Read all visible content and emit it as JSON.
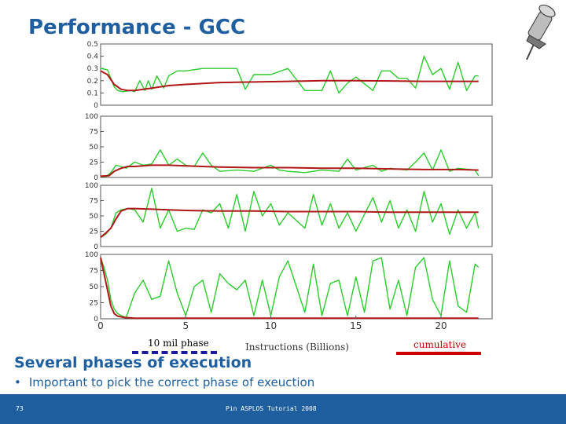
{
  "slide": {
    "title": "Performance - GCC",
    "bullet_heading": "Several phases of execution",
    "bullet_text": "Important to pick the correct phase of exeuction",
    "footer_text": "Pin ASPLOS Tutorial 2008",
    "page_number": "73",
    "pin_icon": "pushpin-icon"
  },
  "legend": {
    "phase_label": "10 mil phase",
    "cumulative_label": "cumulative",
    "phase_color": "#2ccc2c",
    "cumulative_color": "#b01818"
  },
  "colors": {
    "title": "#1f5fa0",
    "footer_bg": "#1f5fa0",
    "phase_series": "#2ccc2c",
    "cumulative_series": "#b01818"
  },
  "chart_data": {
    "type": "line",
    "xlabel": "Instructions (Billions)",
    "xlim": [
      0,
      23
    ],
    "x_ticks": [
      0,
      5,
      10,
      15,
      20
    ],
    "grid": false,
    "panels": [
      {
        "ylim": [
          0,
          0.5
        ],
        "y_ticks": [
          "0",
          "0.1",
          "0.2",
          "0.3",
          "0.4",
          "0.5"
        ],
        "y_max": 0.5,
        "series": [
          {
            "role": "phase",
            "x": [
              0,
              0.4,
              0.6,
              0.8,
              1,
              1.3,
              1.8,
              2,
              2.3,
              2.6,
              2.8,
              3,
              3.3,
              3.7,
              4,
              4.5,
              5,
              6,
              7,
              8,
              8.5,
              9,
              10,
              11,
              12,
              13,
              13.5,
              14,
              14.5,
              15,
              16,
              16.5,
              17,
              17.5,
              18,
              18.5,
              19,
              19.5,
              20,
              20.5,
              21,
              21.5,
              22,
              22.2
            ],
            "y": [
              0.3,
              0.29,
              0.22,
              0.15,
              0.12,
              0.11,
              0.12,
              0.11,
              0.2,
              0.12,
              0.2,
              0.13,
              0.24,
              0.14,
              0.24,
              0.28,
              0.28,
              0.3,
              0.3,
              0.3,
              0.13,
              0.25,
              0.25,
              0.3,
              0.12,
              0.12,
              0.28,
              0.1,
              0.18,
              0.23,
              0.12,
              0.28,
              0.28,
              0.22,
              0.22,
              0.14,
              0.4,
              0.25,
              0.3,
              0.13,
              0.35,
              0.12,
              0.24,
              0.24
            ]
          },
          {
            "role": "cumulative",
            "x": [
              0,
              0.4,
              0.8,
              1.2,
              1.6,
              2,
              3,
              4,
              5,
              7,
              9,
              11,
              13,
              15,
              17,
              19,
              21,
              22.2
            ],
            "y": [
              0.28,
              0.25,
              0.17,
              0.13,
              0.12,
              0.12,
              0.14,
              0.16,
              0.17,
              0.185,
              0.19,
              0.195,
              0.2,
              0.2,
              0.198,
              0.195,
              0.195,
              0.195
            ]
          }
        ]
      },
      {
        "ylim": [
          0,
          100
        ],
        "y_ticks": [
          "0",
          "25",
          "50",
          "75",
          "100"
        ],
        "y_max": 100,
        "series": [
          {
            "role": "phase",
            "x": [
              0,
              0.3,
              0.6,
              0.9,
              1.2,
              1.5,
              2,
              2.5,
              3,
              3.5,
              4,
              4.5,
              5,
              5.5,
              6,
              6.5,
              7,
              8,
              9,
              10,
              10.5,
              11,
              12,
              13,
              14,
              14.5,
              15,
              16,
              16.5,
              17,
              18,
              18.5,
              19,
              19.5,
              20,
              20.5,
              21,
              22,
              22.2
            ],
            "y": [
              2,
              1,
              8,
              20,
              18,
              15,
              25,
              20,
              22,
              45,
              20,
              30,
              20,
              18,
              40,
              20,
              10,
              12,
              10,
              20,
              12,
              10,
              8,
              12,
              10,
              30,
              12,
              20,
              10,
              15,
              12,
              25,
              40,
              12,
              45,
              10,
              15,
              12,
              3
            ]
          },
          {
            "role": "cumulative",
            "x": [
              0,
              0.5,
              0.8,
              1.2,
              1.6,
              2,
              3,
              4,
              5,
              7,
              9,
              11,
              13,
              15,
              17,
              19,
              21,
              22.2
            ],
            "y": [
              2,
              3,
              10,
              15,
              18,
              18,
              20,
              20,
              19,
              17,
              16,
              16,
              15,
              15,
              14,
              13,
              13,
              12
            ]
          }
        ]
      },
      {
        "ylim": [
          0,
          100
        ],
        "y_ticks": [
          "0",
          "25",
          "50",
          "75",
          "100"
        ],
        "y_max": 100,
        "series": [
          {
            "role": "phase",
            "x": [
              0,
              0.3,
              0.6,
              0.9,
              1.2,
              1.6,
              2,
              2.5,
              3,
              3.5,
              4,
              4.5,
              5,
              5.5,
              6,
              6.5,
              7,
              7.5,
              8,
              8.5,
              9,
              9.5,
              10,
              10.5,
              11,
              12,
              12.5,
              13,
              13.5,
              14,
              14.5,
              15,
              16,
              16.5,
              17,
              17.5,
              18,
              18.5,
              19,
              19.5,
              20,
              20.5,
              21,
              21.5,
              22,
              22.2
            ],
            "y": [
              15,
              20,
              30,
              55,
              60,
              62,
              60,
              40,
              95,
              30,
              60,
              25,
              30,
              28,
              60,
              55,
              70,
              30,
              85,
              25,
              90,
              50,
              70,
              35,
              55,
              30,
              85,
              35,
              70,
              30,
              55,
              25,
              80,
              40,
              75,
              30,
              60,
              25,
              90,
              40,
              70,
              20,
              60,
              30,
              55,
              30
            ]
          },
          {
            "role": "cumulative",
            "x": [
              0,
              0.3,
              0.6,
              0.9,
              1.2,
              1.6,
              2,
              3,
              4,
              5,
              7,
              9,
              11,
              13,
              15,
              17,
              19,
              21,
              22.2
            ],
            "y": [
              15,
              22,
              30,
              45,
              58,
              62,
              62,
              61,
              60,
              59,
              58,
              58,
              57,
              57,
              57,
              56,
              56,
              56,
              56
            ]
          }
        ]
      },
      {
        "ylim": [
          0,
          100
        ],
        "y_ticks": [
          "0",
          "25",
          "50",
          "75",
          "100"
        ],
        "y_max": 100,
        "series": [
          {
            "role": "phase",
            "x": [
              0,
              0.2,
              0.4,
              0.6,
              0.8,
              1,
              1.2,
              1.5,
              2,
              2.5,
              3,
              3.5,
              4,
              4.5,
              5,
              5.5,
              6,
              6.5,
              7,
              7.5,
              8,
              8.5,
              9,
              9.5,
              10,
              10.5,
              11,
              11.5,
              12,
              12.5,
              13,
              13.5,
              14,
              14.5,
              15,
              15.5,
              16,
              16.5,
              17,
              17.5,
              18,
              18.5,
              19,
              19.5,
              20,
              20.5,
              21,
              21.5,
              22,
              22.2
            ],
            "y": [
              95,
              80,
              60,
              30,
              15,
              8,
              5,
              2,
              40,
              60,
              30,
              35,
              90,
              40,
              5,
              50,
              60,
              10,
              70,
              55,
              45,
              60,
              5,
              60,
              5,
              65,
              90,
              50,
              10,
              85,
              5,
              55,
              60,
              5,
              65,
              10,
              90,
              95,
              15,
              60,
              5,
              80,
              95,
              30,
              5,
              90,
              20,
              10,
              85,
              80
            ]
          },
          {
            "role": "cumulative",
            "x": [
              0,
              0.2,
              0.4,
              0.6,
              0.8,
              1,
              1.4,
              2,
              3,
              5,
              8,
              11,
              14,
              17,
              20,
              22.2
            ],
            "y": [
              95,
              70,
              45,
              20,
              8,
              4,
              2,
              1,
              1,
              1,
              1,
              1,
              1,
              1,
              1,
              1
            ]
          }
        ]
      }
    ]
  }
}
